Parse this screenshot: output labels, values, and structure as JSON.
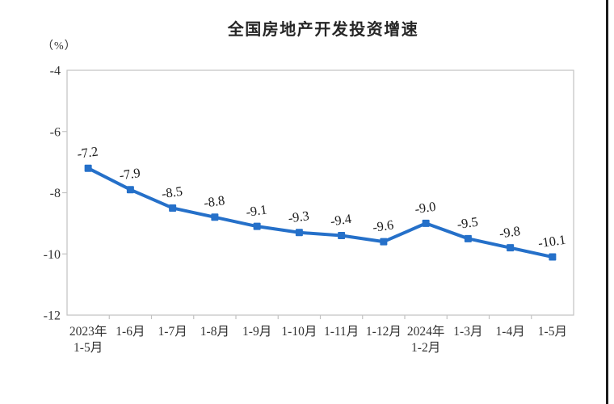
{
  "window": {
    "edge_bar_color": "#1b1b1b",
    "background_color": "#ffffff"
  },
  "chart_data": {
    "type": "line",
    "title": "全国房地产开发投资增速",
    "unit_label": "（%）",
    "categories": [
      "2023年\n1-5月",
      "1-6月",
      "1-7月",
      "1-8月",
      "1-9月",
      "1-10月",
      "1-11月",
      "1-12月",
      "2024年\n1-2月",
      "1-3月",
      "1-4月",
      "1-5月"
    ],
    "values": [
      -7.2,
      -7.9,
      -8.5,
      -8.8,
      -9.1,
      -9.3,
      -9.4,
      -9.6,
      -9.0,
      -9.5,
      -9.8,
      -10.1
    ],
    "data_labels": [
      "-7.2",
      "-7.9",
      "-8.5",
      "-8.8",
      "-9.1",
      "-9.3",
      "-9.4",
      "-9.6",
      "-9.0",
      "-9.5",
      "-9.8",
      "-10.1"
    ],
    "ylim": [
      -12,
      -4
    ],
    "yticks": [
      -4,
      -6,
      -8,
      -10,
      -12
    ],
    "grid": false,
    "legend": "none",
    "line_color": "#2570C9",
    "marker_color": "#2570C9",
    "axis_color": "#c2c2c2",
    "tick_text_color": "#333333",
    "data_label_color": "#1a1a1a"
  }
}
